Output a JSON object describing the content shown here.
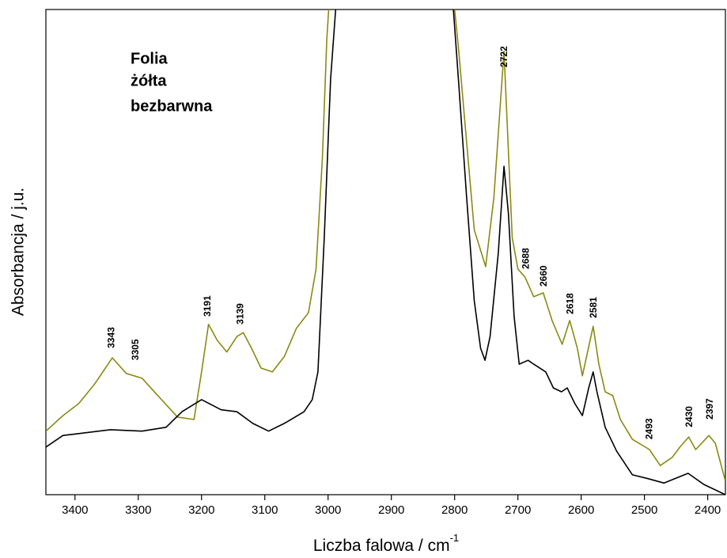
{
  "chart_data": {
    "type": "line",
    "xlabel": "Liczba falowa / cm",
    "xlabel_sup": "-1",
    "ylabel": "Absorbancja / j.u.",
    "legend_title": "Folia",
    "xlim": [
      3446,
      2372
    ],
    "ylim": [
      0,
      100
    ],
    "xticks": [
      3400,
      3300,
      3200,
      3100,
      3000,
      2900,
      2800,
      2700,
      2600,
      2500,
      2400
    ],
    "series": [
      {
        "name": "żółta",
        "color": "#8a8a12",
        "x": [
          3446,
          3419,
          3394,
          3369,
          3341,
          3319,
          3294,
          3269,
          3238,
          3212,
          3200,
          3189,
          3175,
          3160,
          3144,
          3134,
          3121,
          3106,
          3088,
          3069,
          3050,
          3031,
          3019,
          3009,
          3002,
          2999,
          2900,
          2800,
          2794,
          2781,
          2769,
          2751,
          2738,
          2722,
          2709,
          2700,
          2689,
          2675,
          2660,
          2646,
          2630,
          2618,
          2606,
          2598,
          2581,
          2572,
          2562,
          2550,
          2538,
          2519,
          2492,
          2475,
          2456,
          2444,
          2430,
          2419,
          2398,
          2388,
          2372
        ],
        "values": [
          13.1,
          16.3,
          18.8,
          22.8,
          28.2,
          25.0,
          24.0,
          20.4,
          16.0,
          15.5,
          25.3,
          35.1,
          31.8,
          29.4,
          32.6,
          33.4,
          30.2,
          26.1,
          25.3,
          28.5,
          34.3,
          37.5,
          46.5,
          69.3,
          93.8,
          100,
          null,
          100,
          92.2,
          72.6,
          54.6,
          47.0,
          61.2,
          91.4,
          53.0,
          46.5,
          44.9,
          40.8,
          41.6,
          35.9,
          31.0,
          35.9,
          30.2,
          24.5,
          34.7,
          26.9,
          21.2,
          20.4,
          15.5,
          11.4,
          9.3,
          6.0,
          7.7,
          9.8,
          11.9,
          9.3,
          12.2,
          10.6,
          2.8
        ]
      },
      {
        "name": "bezbarwna",
        "color": "#000000",
        "x": [
          3446,
          3419,
          3394,
          3344,
          3294,
          3256,
          3231,
          3200,
          3169,
          3144,
          3119,
          3094,
          3069,
          3038,
          3025,
          3016,
          3006,
          2996,
          2988,
          2900,
          2802,
          2794,
          2781,
          2769,
          2759,
          2752,
          2744,
          2731,
          2722,
          2715,
          2706,
          2698,
          2684,
          2675,
          2656,
          2644,
          2631,
          2622,
          2610,
          2598,
          2588,
          2581,
          2575,
          2562,
          2544,
          2519,
          2494,
          2469,
          2431,
          2406,
          2372
        ],
        "values": [
          9.8,
          12.2,
          12.6,
          13.4,
          13.1,
          13.9,
          17.1,
          19.6,
          17.5,
          17.1,
          14.7,
          13.1,
          14.7,
          17.1,
          19.6,
          25.3,
          53.0,
          85.6,
          100,
          null,
          100,
          85.6,
          61.2,
          40.0,
          30.2,
          27.7,
          32.6,
          49.8,
          67.7,
          57.9,
          36.7,
          26.9,
          27.7,
          26.9,
          25.3,
          22.0,
          21.2,
          22.0,
          18.8,
          16.3,
          22.0,
          25.3,
          21.2,
          13.9,
          9.0,
          4.1,
          3.3,
          2.4,
          4.4,
          2.1,
          0
        ]
      }
    ],
    "annotations": [
      {
        "label": "3343",
        "x": 3343,
        "y": 30.2
      },
      {
        "label": "3305",
        "x": 3305,
        "y": 27.7
      },
      {
        "label": "3191",
        "x": 3191,
        "y": 36.7
      },
      {
        "label": "3139",
        "x": 3139,
        "y": 35.1
      },
      {
        "label": "2722",
        "x": 2722,
        "y": 88.1
      },
      {
        "label": "2688",
        "x": 2688,
        "y": 46.5
      },
      {
        "label": "2660",
        "x": 2660,
        "y": 42.9
      },
      {
        "label": "2618",
        "x": 2618,
        "y": 37.2
      },
      {
        "label": "2581",
        "x": 2581,
        "y": 36.4
      },
      {
        "label": "2493",
        "x": 2493,
        "y": 11.4
      },
      {
        "label": "2430",
        "x": 2430,
        "y": 13.9
      },
      {
        "label": "2397",
        "x": 2397,
        "y": 15.5
      }
    ]
  }
}
